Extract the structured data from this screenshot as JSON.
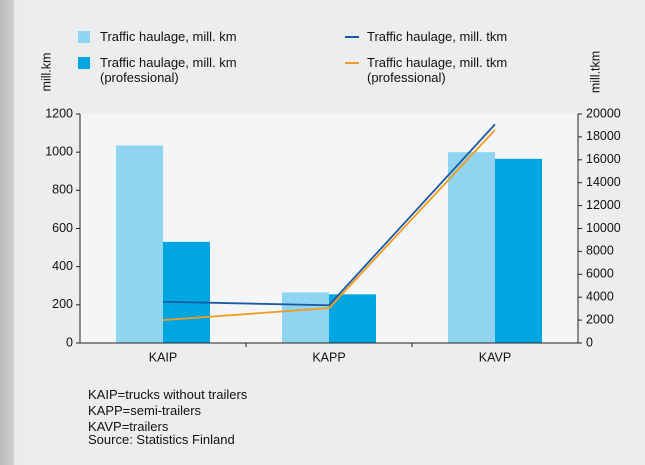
{
  "chart_data": {
    "type": "bar",
    "y_label": "mill.km",
    "y2_label": "mill.tkm",
    "categories": [
      "KAIP",
      "KAPP",
      "KAVP"
    ],
    "series": [
      {
        "name": "Traffic haulage, mill. km",
        "color": "#8fd5f2",
        "type": "bar",
        "values": [
          1035,
          265,
          1000
        ]
      },
      {
        "name": "Traffic haulage, mill. km (professional)",
        "color": "#00a6e2",
        "type": "bar",
        "values": [
          530,
          255,
          965
        ]
      },
      {
        "name": "Traffic haulage, mill. tkm",
        "color": "#1a5aa0",
        "type": "line",
        "axis": "y2",
        "values": [
          3600,
          3300,
          19100
        ]
      },
      {
        "name": "Traffic haulage, mill. tkm (professional)",
        "color": "#f39b1f",
        "type": "line",
        "axis": "y2",
        "values": [
          2000,
          3050,
          18600
        ]
      }
    ],
    "ylim": [
      0,
      1200
    ],
    "yticks": [
      0,
      200,
      400,
      600,
      800,
      1000,
      1200
    ],
    "y2lim": [
      0,
      20000
    ],
    "y2ticks": [
      0,
      2000,
      4000,
      6000,
      8000,
      10000,
      12000,
      14000,
      16000,
      18000,
      20000
    ],
    "notes": [
      "KAIP=trucks without trailers",
      "KAPP=semi-trailers",
      "KAVP=trailers",
      "Source: Statistics Finland"
    ]
  }
}
